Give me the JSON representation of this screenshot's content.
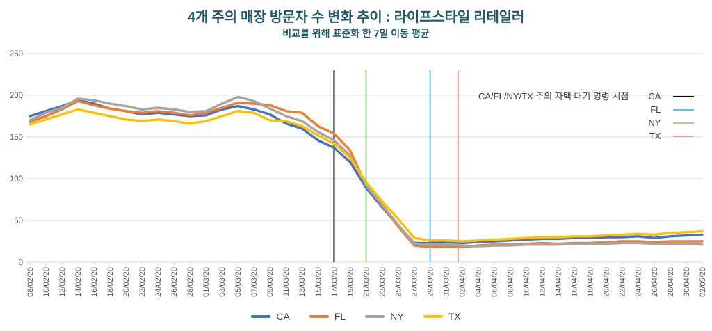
{
  "chart_data": {
    "type": "line",
    "title": "4개 주의 매장 방문자 수 변화 추이 : 라이프스타일 리테일러",
    "subtitle": "비교를 위해 표준화 한 7일 이동 평균",
    "title_color": "#20596D",
    "x_tick_labels": [
      "08/02/20",
      "10/02/20",
      "12/02/20",
      "14/02/20",
      "16/02/20",
      "18/02/20",
      "20/02/20",
      "22/02/20",
      "24/02/20",
      "26/02/20",
      "28/02/20",
      "01/03/20",
      "03/03/20",
      "05/03/20",
      "07/03/20",
      "09/03/20",
      "11/03/20",
      "13/03/20",
      "15/03/20",
      "17/03/20",
      "19/03/20",
      "21/03/20",
      "23/03/20",
      "25/03/20",
      "27/03/20",
      "29/03/20",
      "31/03/20",
      "02/04/20",
      "04/04/20",
      "06/04/20",
      "08/04/20",
      "10/04/20",
      "12/04/20",
      "14/04/20",
      "16/04/20",
      "18/04/20",
      "20/04/20",
      "22/04/20",
      "24/04/20",
      "26/04/20",
      "28/04/20",
      "30/04/20",
      "02/05/20"
    ],
    "ylim": [
      0,
      250
    ],
    "y_ticks": [
      0,
      50,
      100,
      150,
      200,
      250
    ],
    "grid": "horizontal",
    "legend_position": "bottom",
    "series": [
      {
        "name": "CA",
        "color": "#4472C4",
        "values": [
          175,
          181,
          187,
          194,
          190,
          184,
          181,
          177,
          179,
          177,
          175,
          176,
          183,
          187,
          183,
          177,
          166,
          160,
          146,
          137,
          120,
          89,
          66,
          44,
          23,
          23,
          24,
          23,
          24,
          25,
          26,
          27,
          28,
          28,
          29,
          29,
          30,
          30,
          31,
          29,
          31,
          32,
          33
        ]
      },
      {
        "name": "FL",
        "color": "#ED7D31",
        "values": [
          168,
          175,
          183,
          193,
          188,
          184,
          181,
          179,
          181,
          179,
          176,
          179,
          185,
          191,
          190,
          188,
          181,
          179,
          163,
          154,
          134,
          92,
          68,
          43,
          20,
          18,
          19,
          18,
          20,
          21,
          21,
          22,
          23,
          22,
          23,
          23,
          24,
          25,
          25,
          24,
          25,
          25,
          25
        ]
      },
      {
        "name": "NY",
        "color": "#A5A5A5",
        "values": [
          170,
          179,
          185,
          196,
          194,
          190,
          187,
          183,
          185,
          183,
          180,
          181,
          190,
          198,
          193,
          184,
          175,
          169,
          156,
          146,
          128,
          92,
          69,
          45,
          22,
          21,
          21,
          20,
          19,
          20,
          20,
          21,
          21,
          21,
          22,
          22,
          22,
          23,
          23,
          22,
          22,
          22,
          21
        ]
      },
      {
        "name": "TX",
        "color": "#FFC000",
        "values": [
          165,
          171,
          177,
          183,
          179,
          175,
          171,
          169,
          171,
          169,
          166,
          169,
          175,
          181,
          179,
          170,
          169,
          163,
          152,
          142,
          125,
          96,
          73,
          52,
          29,
          26,
          26,
          25,
          26,
          27,
          28,
          29,
          30,
          30,
          31,
          31,
          32,
          33,
          34,
          33,
          35,
          36,
          37
        ]
      }
    ],
    "event_legend_title": "CA/FL/NY/TX 주의 자택 대기 명령 시점",
    "event_lines": [
      {
        "name": "CA",
        "color": "#000000",
        "x_index": 19
      },
      {
        "name": "FL",
        "color": "#4FC3F7",
        "x_index": 25
      },
      {
        "name": "NY",
        "color": "#A8D08D",
        "x_index": 21
      },
      {
        "name": "TX",
        "color": "#F4978E",
        "x_index": 26.75
      }
    ]
  },
  "colors": {
    "axis_text": "#595959",
    "grid_line": "#D9D9D9",
    "legend_text": "#404040"
  }
}
